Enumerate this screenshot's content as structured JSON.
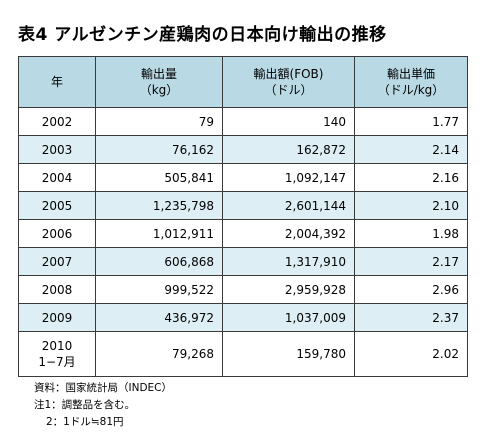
{
  "title": "表4 アルゼンチン産鶏肉の日本向け輸出の推移",
  "headers": {
    "year": "年",
    "quantity": [
      "輸出量",
      "（kg）"
    ],
    "value": [
      "輸出額(FOB)",
      "（ドル）"
    ],
    "unit_price": [
      "輸出単価",
      "（ドル/kg）"
    ]
  },
  "rows": [
    {
      "year": [
        "2002"
      ],
      "quantity": "79",
      "value": "140",
      "unit_price": "1.77"
    },
    {
      "year": [
        "2003"
      ],
      "quantity": "76,162",
      "value": "162,872",
      "unit_price": "2.14"
    },
    {
      "year": [
        "2004"
      ],
      "quantity": "505,841",
      "value": "1,092,147",
      "unit_price": "2.16"
    },
    {
      "year": [
        "2005"
      ],
      "quantity": "1,235,798",
      "value": "2,601,144",
      "unit_price": "2.10"
    },
    {
      "year": [
        "2006"
      ],
      "quantity": "1,012,911",
      "value": "2,004,392",
      "unit_price": "1.98"
    },
    {
      "year": [
        "2007"
      ],
      "quantity": "606,868",
      "value": "1,317,910",
      "unit_price": "2.17"
    },
    {
      "year": [
        "2008"
      ],
      "quantity": "999,522",
      "value": "2,959,928",
      "unit_price": "2.96"
    },
    {
      "year": [
        "2009"
      ],
      "quantity": "436,972",
      "value": "1,037,009",
      "unit_price": "2.37"
    },
    {
      "year": [
        "2010",
        "1−7月"
      ],
      "quantity": "79,268",
      "value": "159,780",
      "unit_price": "2.02"
    }
  ],
  "notes": [
    "資料：国家統計局（INDEC）",
    "注1：調整品を含む。",
    "2：1ドル≒81円"
  ],
  "colors": {
    "header_bg": "#b9d9e5",
    "alt_row_bg": "#ddeff4",
    "border": "#3a3a3a"
  }
}
